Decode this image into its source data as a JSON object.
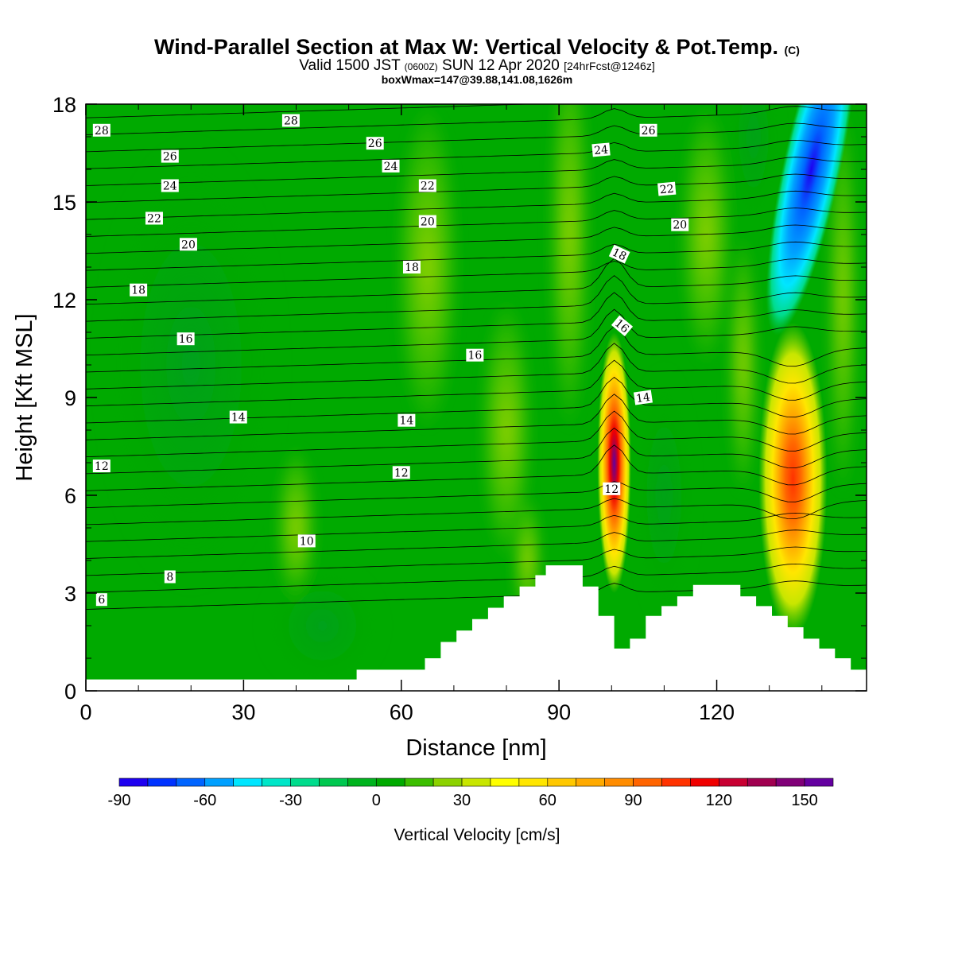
{
  "header": {
    "title": "Wind-Parallel Section at Max W: Vertical Velocity & Pot.Temp.",
    "title_unit": "(C)",
    "valid_prefix": "Valid 1500 JST",
    "valid_utc": "(0600Z)",
    "valid_date": "SUN 12 Apr 2020",
    "forecast": "[24hrFcst@1246z]",
    "boxwmax": "boxWmax=147@39.88,141.08,1626m"
  },
  "chart_data": {
    "type": "heatmap",
    "xlabel": "Distance [nm]",
    "ylabel": "Height [Kft MSL]",
    "xlim": [
      0,
      148.5
    ],
    "ylim": [
      0,
      18
    ],
    "x_ticks": [
      0,
      30,
      60,
      90,
      120
    ],
    "y_ticks": [
      0,
      3,
      6,
      9,
      12,
      15,
      18
    ],
    "grid": false,
    "colorbar": {
      "label": "Vertical Velocity [cm/s]",
      "placement": "bottom",
      "min": -90,
      "max": 160,
      "step": 10,
      "tick_values": [
        -90,
        -60,
        -30,
        0,
        30,
        60,
        90,
        120,
        150
      ],
      "colors": [
        "#1e00f0",
        "#0032ff",
        "#0064ff",
        "#00a0ff",
        "#00e6ff",
        "#00e6c8",
        "#00dc8c",
        "#00c850",
        "#00b41e",
        "#00aa00",
        "#3cbe00",
        "#8cd200",
        "#c8e600",
        "#ffff00",
        "#ffe600",
        "#ffc800",
        "#ffaa00",
        "#ff8c00",
        "#ff6400",
        "#ff3200",
        "#f00000",
        "#c80032",
        "#a00050",
        "#800078",
        "#6400a0"
      ]
    },
    "vertical_velocity_features": [
      {
        "name": "updraft-1",
        "center_x": 100.5,
        "center_y": 7.0,
        "peak": 147
      },
      {
        "name": "updraft-2",
        "center_x": 134.5,
        "center_y": 6.5,
        "peak": 110
      },
      {
        "name": "downdraft-1",
        "center_x": 138,
        "center_y": 16,
        "peak": -85
      }
    ],
    "terrain": [
      [
        0,
        0.35
      ],
      [
        51.5,
        0.35
      ],
      [
        51.5,
        0.65
      ],
      [
        64.5,
        0.65
      ],
      [
        64.5,
        1.0
      ],
      [
        67.5,
        1.0
      ],
      [
        67.5,
        1.5
      ],
      [
        70.5,
        1.5
      ],
      [
        70.5,
        1.85
      ],
      [
        73.5,
        1.85
      ],
      [
        73.5,
        2.2
      ],
      [
        76.5,
        2.2
      ],
      [
        76.5,
        2.55
      ],
      [
        79.5,
        2.55
      ],
      [
        79.5,
        2.9
      ],
      [
        82.5,
        2.9
      ],
      [
        82.5,
        3.2
      ],
      [
        85.5,
        3.2
      ],
      [
        85.5,
        3.55
      ],
      [
        87.5,
        3.55
      ],
      [
        87.5,
        3.85
      ],
      [
        94.5,
        3.85
      ],
      [
        94.5,
        3.2
      ],
      [
        97.5,
        3.2
      ],
      [
        97.5,
        2.3
      ],
      [
        100.5,
        2.3
      ],
      [
        100.5,
        1.3
      ],
      [
        103.5,
        1.3
      ],
      [
        103.5,
        1.6
      ],
      [
        106.5,
        1.6
      ],
      [
        106.5,
        2.3
      ],
      [
        109.5,
        2.3
      ],
      [
        109.5,
        2.6
      ],
      [
        112.5,
        2.6
      ],
      [
        112.5,
        2.9
      ],
      [
        115.5,
        2.9
      ],
      [
        115.5,
        3.25
      ],
      [
        124.5,
        3.25
      ],
      [
        124.5,
        2.9
      ],
      [
        127.5,
        2.9
      ],
      [
        127.5,
        2.6
      ],
      [
        130.5,
        2.6
      ],
      [
        130.5,
        2.3
      ],
      [
        133.5,
        2.3
      ],
      [
        133.5,
        1.95
      ],
      [
        136.5,
        1.95
      ],
      [
        136.5,
        1.6
      ],
      [
        139.5,
        1.6
      ],
      [
        139.5,
        1.3
      ],
      [
        142.5,
        1.3
      ],
      [
        142.5,
        1.0
      ],
      [
        145.5,
        1.0
      ],
      [
        145.5,
        0.65
      ],
      [
        148.5,
        0.65
      ]
    ],
    "theta_contour_labels": [
      {
        "value": "6",
        "x": 3,
        "y": 2.8,
        "angle": 0
      },
      {
        "value": "8",
        "x": 16,
        "y": 3.5,
        "angle": 0
      },
      {
        "value": "10",
        "x": 42,
        "y": 4.6,
        "angle": 0
      },
      {
        "value": "12",
        "x": 3,
        "y": 6.9,
        "angle": 0
      },
      {
        "value": "12",
        "x": 60,
        "y": 6.7,
        "angle": 0
      },
      {
        "value": "12",
        "x": 100,
        "y": 6.2,
        "angle": 0
      },
      {
        "value": "14",
        "x": 29,
        "y": 8.4,
        "angle": 0
      },
      {
        "value": "14",
        "x": 61,
        "y": 8.3,
        "angle": 0
      },
      {
        "value": "14",
        "x": 106,
        "y": 9.0,
        "angle": -8
      },
      {
        "value": "16",
        "x": 19,
        "y": 10.8,
        "angle": 0
      },
      {
        "value": "16",
        "x": 74,
        "y": 10.3,
        "angle": 0
      },
      {
        "value": "16",
        "x": 102,
        "y": 11.2,
        "angle": 40
      },
      {
        "value": "18",
        "x": 10,
        "y": 12.3,
        "angle": 0
      },
      {
        "value": "18",
        "x": 62,
        "y": 13.0,
        "angle": 0
      },
      {
        "value": "18",
        "x": 101.5,
        "y": 13.4,
        "angle": 25
      },
      {
        "value": "20",
        "x": 19.5,
        "y": 13.7,
        "angle": 0
      },
      {
        "value": "20",
        "x": 65,
        "y": 14.4,
        "angle": 0
      },
      {
        "value": "20",
        "x": 113,
        "y": 14.3,
        "angle": 0
      },
      {
        "value": "22",
        "x": 13,
        "y": 14.5,
        "angle": 0
      },
      {
        "value": "22",
        "x": 65,
        "y": 15.5,
        "angle": 0
      },
      {
        "value": "22",
        "x": 110.5,
        "y": 15.4,
        "angle": -5
      },
      {
        "value": "24",
        "x": 16,
        "y": 15.5,
        "angle": 0
      },
      {
        "value": "24",
        "x": 58,
        "y": 16.1,
        "angle": 0
      },
      {
        "value": "24",
        "x": 98,
        "y": 16.6,
        "angle": -5
      },
      {
        "value": "26",
        "x": 16,
        "y": 16.4,
        "angle": 0
      },
      {
        "value": "26",
        "x": 55,
        "y": 16.8,
        "angle": 0
      },
      {
        "value": "26",
        "x": 107,
        "y": 17.2,
        "angle": 0
      },
      {
        "value": "28",
        "x": 3,
        "y": 17.2,
        "angle": 0
      },
      {
        "value": "28",
        "x": 39,
        "y": 17.5,
        "angle": 0
      }
    ]
  }
}
